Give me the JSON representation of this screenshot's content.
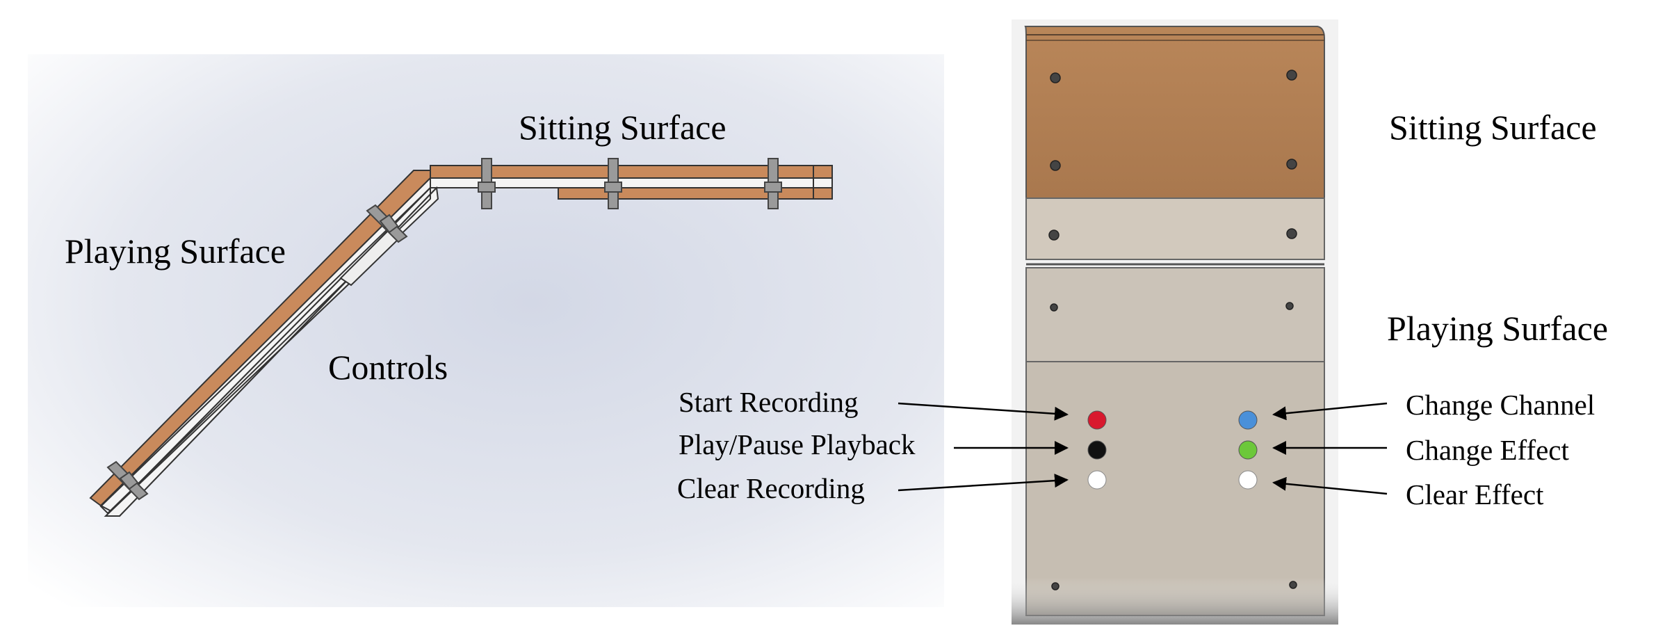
{
  "side_view": {
    "labels": {
      "sitting_surface": "Sitting Surface",
      "playing_surface": "Playing Surface",
      "controls": "Controls"
    },
    "colors": {
      "wood": "#c8875a",
      "background_center": "#d7dce8"
    }
  },
  "top_view": {
    "labels": {
      "sitting_surface": "Sitting Surface",
      "playing_surface": "Playing Surface"
    },
    "buttons_left": [
      {
        "label": "Start Recording",
        "color": "#d8192e"
      },
      {
        "label": "Play/Pause Playback",
        "color": "#111111"
      },
      {
        "label": "Clear Recording",
        "color": "#ffffff"
      }
    ],
    "buttons_right": [
      {
        "label": "Change Channel",
        "color": "#4a90d9"
      },
      {
        "label": "Change Effect",
        "color": "#6cc83a"
      },
      {
        "label": "Clear Effect",
        "color": "#ffffff"
      }
    ]
  }
}
